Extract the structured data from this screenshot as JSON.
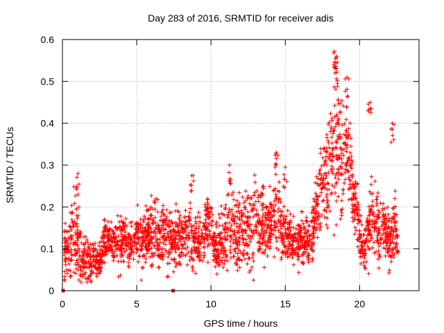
{
  "chart_data": {
    "type": "scatter",
    "title": "Day 283 of 2016, SRMTID for receiver adis",
    "xlabel": "GPS time / hours",
    "ylabel": "SRMTID / TECUs",
    "xlim": [
      0,
      24
    ],
    "ylim": [
      0,
      0.6
    ],
    "xticks": [
      0,
      5,
      10,
      15,
      20
    ],
    "xtick_labels": [
      "0",
      "5",
      "10",
      "15",
      "20"
    ],
    "yticks": [
      0,
      0.1,
      0.2,
      0.3,
      0.4,
      0.5,
      0.6
    ],
    "ytick_labels": [
      "0",
      "0.1",
      "0.2",
      "0.3",
      "0.4",
      "0.5",
      "0.6"
    ],
    "grid": true,
    "marker": "+",
    "series": [
      {
        "name": "SRMTID",
        "color": "#ff0000",
        "envelope": {
          "description": "approximate median and spread of the dense plus-marker cloud, sampled every 0.25 h",
          "x": [
            0.1,
            0.35,
            0.6,
            0.85,
            1.1,
            1.35,
            1.6,
            1.85,
            2.1,
            2.35,
            2.6,
            2.85,
            3.1,
            3.35,
            3.6,
            3.85,
            4.1,
            4.35,
            4.6,
            4.85,
            5.1,
            5.35,
            5.6,
            5.85,
            6.1,
            6.35,
            6.6,
            6.85,
            7.1,
            7.35,
            7.6,
            7.85,
            8.1,
            8.35,
            8.6,
            8.85,
            9.1,
            9.35,
            9.6,
            9.85,
            10.1,
            10.35,
            10.6,
            10.85,
            11.1,
            11.35,
            11.6,
            11.85,
            12.1,
            12.35,
            12.6,
            12.85,
            13.1,
            13.35,
            13.6,
            13.85,
            14.1,
            14.35,
            14.6,
            14.85,
            15.1,
            15.35,
            15.6,
            15.85,
            16.1,
            16.35,
            16.6,
            16.85,
            17.1,
            17.35,
            17.6,
            17.85,
            18.1,
            18.35,
            18.6,
            18.85,
            19.1,
            19.35,
            19.6,
            19.85,
            20.1,
            20.35,
            20.6,
            20.85,
            21.1,
            21.35,
            21.6,
            21.85,
            22.1,
            22.35,
            22.6
          ],
          "median": [
            0.09,
            0.1,
            0.12,
            0.13,
            0.1,
            0.07,
            0.08,
            0.07,
            0.08,
            0.06,
            0.09,
            0.12,
            0.13,
            0.1,
            0.12,
            0.11,
            0.12,
            0.12,
            0.11,
            0.12,
            0.13,
            0.11,
            0.13,
            0.14,
            0.14,
            0.12,
            0.13,
            0.14,
            0.13,
            0.12,
            0.13,
            0.12,
            0.13,
            0.13,
            0.14,
            0.12,
            0.11,
            0.12,
            0.15,
            0.17,
            0.12,
            0.1,
            0.11,
            0.13,
            0.15,
            0.15,
            0.14,
            0.12,
            0.13,
            0.15,
            0.14,
            0.16,
            0.17,
            0.16,
            0.14,
            0.15,
            0.17,
            0.19,
            0.16,
            0.13,
            0.13,
            0.12,
            0.11,
            0.11,
            0.12,
            0.12,
            0.11,
            0.13,
            0.2,
            0.25,
            0.28,
            0.26,
            0.32,
            0.34,
            0.36,
            0.3,
            0.34,
            0.3,
            0.22,
            0.17,
            0.11,
            0.1,
            0.13,
            0.2,
            0.16,
            0.14,
            0.15,
            0.13,
            0.12,
            0.17,
            0.1
          ],
          "spread": [
            0.03,
            0.03,
            0.05,
            0.06,
            0.05,
            0.03,
            0.03,
            0.03,
            0.03,
            0.02,
            0.03,
            0.03,
            0.02,
            0.03,
            0.03,
            0.04,
            0.03,
            0.03,
            0.03,
            0.03,
            0.03,
            0.04,
            0.04,
            0.04,
            0.04,
            0.03,
            0.04,
            0.04,
            0.04,
            0.03,
            0.04,
            0.04,
            0.04,
            0.04,
            0.05,
            0.03,
            0.03,
            0.03,
            0.04,
            0.04,
            0.04,
            0.03,
            0.04,
            0.05,
            0.05,
            0.05,
            0.05,
            0.05,
            0.05,
            0.05,
            0.05,
            0.06,
            0.05,
            0.05,
            0.05,
            0.05,
            0.05,
            0.06,
            0.05,
            0.04,
            0.04,
            0.03,
            0.03,
            0.03,
            0.04,
            0.03,
            0.03,
            0.04,
            0.05,
            0.06,
            0.06,
            0.07,
            0.08,
            0.1,
            0.09,
            0.08,
            0.06,
            0.06,
            0.05,
            0.04,
            0.03,
            0.03,
            0.04,
            0.06,
            0.05,
            0.04,
            0.04,
            0.04,
            0.04,
            0.05,
            0.03
          ]
        },
        "peaks": {
          "x": [
            18.3,
            18.45,
            18.4,
            19.15,
            20.7,
            22.2,
            14.4,
            15.0,
            8.7,
            11.25,
            1.05,
            6.3
          ],
          "y": [
            0.572,
            0.56,
            0.53,
            0.51,
            0.45,
            0.4,
            0.33,
            0.295,
            0.275,
            0.3,
            0.28,
            0.22
          ]
        },
        "zero_markers": {
          "x": [
            0.05,
            7.45
          ],
          "y": [
            0.0,
            0.0
          ]
        },
        "point_count": 2700,
        "seed": 283
      }
    ]
  }
}
